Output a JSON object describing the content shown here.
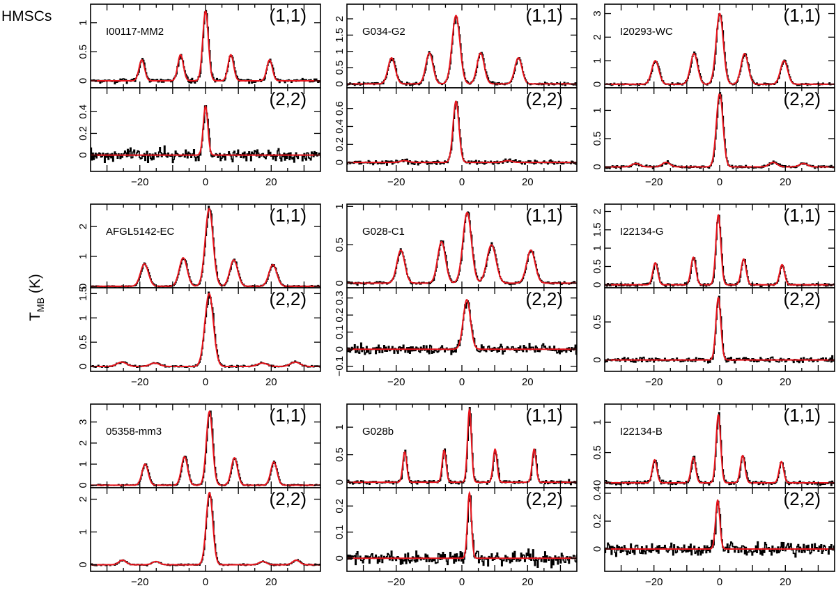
{
  "figure": {
    "row_label": "HMSCs",
    "ylabel_main": "T",
    "ylabel_sub": "MB",
    "ylabel_unit": " (K)"
  },
  "colors": {
    "data": "#000000",
    "model": "#e8141c",
    "frame": "#000000"
  },
  "chart_data": {
    "type": "line",
    "xlabel": "",
    "ylabel": "T_MB (K)",
    "xlim": [
      -35,
      35
    ],
    "x_ticks": [
      -20,
      0,
      20
    ],
    "x_tick_labels": [
      "−20",
      "0",
      "20"
    ],
    "line_types": [
      "(1,1)",
      "(2,2)"
    ],
    "sources": [
      {
        "name": "I00117-MM2",
        "panels": [
          {
            "line": "(1,1)",
            "ylim": [
              -0.12,
              1.32
            ],
            "y_ticks": [
              {
                "v": 0,
                "label": "0"
              },
              {
                "v": 0.5,
                "label": "0.5"
              },
              {
                "v": 1,
                "label": "1"
              }
            ],
            "components": [
              {
                "v": -19.4,
                "amp": 0.36,
                "w": 0.85
              },
              {
                "v": -7.6,
                "amp": 0.45,
                "w": 0.85
              },
              {
                "v": 0.0,
                "amp": 1.2,
                "w": 0.85
              },
              {
                "v": 7.7,
                "amp": 0.45,
                "w": 0.85
              },
              {
                "v": 19.5,
                "amp": 0.36,
                "w": 0.85
              }
            ],
            "noise": 0.035
          },
          {
            "line": "(2,2)",
            "ylim": [
              -0.15,
              0.62
            ],
            "y_ticks": [
              {
                "v": 0,
                "label": "0"
              },
              {
                "v": 0.2,
                "label": "0.2"
              },
              {
                "v": 0.4,
                "label": "0.4"
              }
            ],
            "components": [
              {
                "v": 0.0,
                "amp": 0.45,
                "w": 0.7
              }
            ],
            "noise": 0.06
          }
        ]
      },
      {
        "name": "G034-G2",
        "panels": [
          {
            "line": "(1,1)",
            "ylim": [
              -0.12,
              2.45
            ],
            "y_ticks": [
              {
                "v": 0,
                "label": "0"
              },
              {
                "v": 0.5,
                "label": "0.5"
              },
              {
                "v": 1,
                "label": "1"
              },
              {
                "v": 1.5,
                "label": "1.5"
              },
              {
                "v": 2,
                "label": "2"
              }
            ],
            "components": [
              {
                "v": -21.4,
                "amp": 0.8,
                "w": 1.1
              },
              {
                "v": -9.9,
                "amp": 0.95,
                "w": 1.1
              },
              {
                "v": -1.8,
                "amp": 2.1,
                "w": 1.2
              },
              {
                "v": 5.7,
                "amp": 0.95,
                "w": 1.1
              },
              {
                "v": 17.2,
                "amp": 0.8,
                "w": 1.1
              }
            ],
            "noise": 0.05
          },
          {
            "line": "(2,2)",
            "ylim": [
              -0.1,
              0.83
            ],
            "y_ticks": [
              {
                "v": 0,
                "label": "0"
              },
              {
                "v": 0.2,
                "label": "0.2"
              },
              {
                "v": 0.4,
                "label": "0.4"
              },
              {
                "v": 0.6,
                "label": "0.6"
              }
            ],
            "components": [
              {
                "v": -1.8,
                "amp": 0.68,
                "w": 0.9
              },
              {
                "v": -17.5,
                "amp": 0.02,
                "w": 1.2
              },
              {
                "v": 14.0,
                "amp": 0.02,
                "w": 1.2
              }
            ],
            "noise": 0.025
          }
        ]
      },
      {
        "name": "I20293-WC",
        "panels": [
          {
            "line": "(1,1)",
            "ylim": [
              -0.15,
              3.4
            ],
            "y_ticks": [
              {
                "v": 0,
                "label": "0"
              },
              {
                "v": 1,
                "label": "1"
              },
              {
                "v": 2,
                "label": "2"
              },
              {
                "v": 3,
                "label": "3"
              }
            ],
            "components": [
              {
                "v": -19.6,
                "amp": 1.0,
                "w": 1.1
              },
              {
                "v": -7.8,
                "amp": 1.3,
                "w": 1.1
              },
              {
                "v": 0.0,
                "amp": 3.0,
                "w": 1.1
              },
              {
                "v": 7.6,
                "amp": 1.3,
                "w": 1.1
              },
              {
                "v": 19.6,
                "amp": 1.0,
                "w": 1.1
              }
            ],
            "noise": 0.05
          },
          {
            "line": "(2,2)",
            "ylim": [
              -0.08,
              1.4
            ],
            "y_ticks": [
              {
                "v": 0,
                "label": "0"
              },
              {
                "v": 0.5,
                "label": "0.5"
              },
              {
                "v": 1,
                "label": "1"
              }
            ],
            "components": [
              {
                "v": 0.0,
                "amp": 1.3,
                "w": 1.0
              },
              {
                "v": -25.5,
                "amp": 0.06,
                "w": 1.2
              },
              {
                "v": -16.3,
                "amp": 0.08,
                "w": 1.2
              },
              {
                "v": 16.3,
                "amp": 0.08,
                "w": 1.2
              },
              {
                "v": 25.5,
                "amp": 0.06,
                "w": 1.2
              }
            ],
            "noise": 0.025
          }
        ]
      },
      {
        "name": "AFGL5142-EC",
        "panels": [
          {
            "line": "(1,1)",
            "ylim": [
              -0.05,
              2.75
            ],
            "y_ticks": [
              {
                "v": 0,
                "label": "0"
              },
              {
                "v": 1,
                "label": "1"
              },
              {
                "v": 2,
                "label": "2"
              }
            ],
            "components": [
              {
                "v": -18.6,
                "amp": 0.75,
                "w": 1.2
              },
              {
                "v": -6.8,
                "amp": 0.95,
                "w": 1.2
              },
              {
                "v": 1.1,
                "amp": 2.6,
                "w": 1.2
              },
              {
                "v": 8.6,
                "amp": 0.88,
                "w": 1.2
              },
              {
                "v": 20.5,
                "amp": 0.72,
                "w": 1.2
              }
            ],
            "noise": 0.025
          },
          {
            "line": "(2,2)",
            "ylim": [
              -0.1,
              1.62
            ],
            "y_ticks": [
              {
                "v": 0,
                "label": "0"
              },
              {
                "v": 0.5,
                "label": "0.5"
              },
              {
                "v": 1,
                "label": "1"
              },
              {
                "v": 1.5,
                "label": "1.5"
              }
            ],
            "components": [
              {
                "v": 1.1,
                "amp": 1.5,
                "w": 1.3
              },
              {
                "v": -25.5,
                "amp": 0.09,
                "w": 1.5
              },
              {
                "v": -15.5,
                "amp": 0.07,
                "w": 1.5
              },
              {
                "v": 17.3,
                "amp": 0.07,
                "w": 1.5
              },
              {
                "v": 27.3,
                "amp": 0.09,
                "w": 1.5
              }
            ],
            "noise": 0.02
          }
        ]
      },
      {
        "name": "G028-C1",
        "panels": [
          {
            "line": "(1,1)",
            "ylim": [
              -0.06,
              1.03
            ],
            "y_ticks": [
              {
                "v": 0,
                "label": "0"
              },
              {
                "v": 0.5,
                "label": "0.5"
              },
              {
                "v": 1,
                "label": "1"
              }
            ],
            "components": [
              {
                "v": -18.6,
                "amp": 0.43,
                "w": 1.2
              },
              {
                "v": -6.2,
                "amp": 0.54,
                "w": 1.2
              },
              {
                "v": 1.6,
                "amp": 0.92,
                "w": 1.3
              },
              {
                "v": 9.0,
                "amp": 0.5,
                "w": 1.4
              },
              {
                "v": 21.0,
                "amp": 0.43,
                "w": 1.3
              }
            ],
            "noise": 0.02
          },
          {
            "line": "(2,2)",
            "ylim": [
              -0.13,
              0.36
            ],
            "y_ticks": [
              {
                "v": -0.1,
                "label": "−0.1"
              },
              {
                "v": 0,
                "label": "0"
              },
              {
                "v": 0.1,
                "label": "0.1"
              },
              {
                "v": 0.2,
                "label": "0.2"
              },
              {
                "v": 0.3,
                "label": "0.3"
              }
            ],
            "components": [
              {
                "v": 1.5,
                "amp": 0.29,
                "w": 1.1
              }
            ],
            "noise": 0.028
          }
        ]
      },
      {
        "name": "I22134-G",
        "panels": [
          {
            "line": "(1,1)",
            "ylim": [
              -0.08,
              2.2
            ],
            "y_ticks": [
              {
                "v": 0,
                "label": "0"
              },
              {
                "v": 0.5,
                "label": "0.5"
              },
              {
                "v": 1,
                "label": "1"
              },
              {
                "v": 1.5,
                "label": "1.5"
              },
              {
                "v": 2,
                "label": "2"
              }
            ],
            "components": [
              {
                "v": -19.6,
                "amp": 0.6,
                "w": 0.75
              },
              {
                "v": -8.0,
                "amp": 0.75,
                "w": 0.75
              },
              {
                "v": -0.4,
                "amp": 1.9,
                "w": 0.75
              },
              {
                "v": 7.3,
                "amp": 0.7,
                "w": 0.75
              },
              {
                "v": 19.0,
                "amp": 0.55,
                "w": 0.75
              }
            ],
            "noise": 0.04
          },
          {
            "line": "(2,2)",
            "ylim": [
              -0.15,
              0.95
            ],
            "y_ticks": [
              {
                "v": 0,
                "label": "0"
              },
              {
                "v": 0.5,
                "label": "0.5"
              }
            ],
            "components": [
              {
                "v": -0.4,
                "amp": 0.82,
                "w": 0.75
              }
            ],
            "noise": 0.035
          }
        ]
      },
      {
        "name": "05358-mm3",
        "panels": [
          {
            "line": "(1,1)",
            "ylim": [
              -0.12,
              3.85
            ],
            "y_ticks": [
              {
                "v": 0,
                "label": "0"
              },
              {
                "v": 1,
                "label": "1"
              },
              {
                "v": 2,
                "label": "2"
              },
              {
                "v": 3,
                "label": "3"
              }
            ],
            "components": [
              {
                "v": -18.4,
                "amp": 1.0,
                "w": 0.95
              },
              {
                "v": -6.4,
                "amp": 1.35,
                "w": 0.95
              },
              {
                "v": 1.2,
                "amp": 3.5,
                "w": 0.95
              },
              {
                "v": 8.8,
                "amp": 1.3,
                "w": 0.95
              },
              {
                "v": 20.8,
                "amp": 1.1,
                "w": 0.95
              }
            ],
            "noise": 0.04
          },
          {
            "line": "(2,2)",
            "ylim": [
              -0.2,
              2.35
            ],
            "y_ticks": [
              {
                "v": 0,
                "label": "0"
              },
              {
                "v": 1,
                "label": "1"
              },
              {
                "v": 2,
                "label": "2"
              }
            ],
            "components": [
              {
                "v": 1.2,
                "amp": 2.2,
                "w": 1.0
              },
              {
                "v": -25.3,
                "amp": 0.14,
                "w": 1.1
              },
              {
                "v": -15.1,
                "amp": 0.1,
                "w": 1.1
              },
              {
                "v": 17.4,
                "amp": 0.1,
                "w": 1.1
              },
              {
                "v": 27.6,
                "amp": 0.14,
                "w": 1.1
              }
            ],
            "noise": 0.025
          }
        ]
      },
      {
        "name": "G028b",
        "panels": [
          {
            "line": "(1,1)",
            "ylim": [
              -0.1,
              1.42
            ],
            "y_ticks": [
              {
                "v": 0,
                "label": "0"
              },
              {
                "v": 0.5,
                "label": "0.5"
              },
              {
                "v": 1,
                "label": "1"
              }
            ],
            "components": [
              {
                "v": -17.4,
                "amp": 0.55,
                "w": 0.6
              },
              {
                "v": -5.4,
                "amp": 0.58,
                "w": 0.6
              },
              {
                "v": 2.3,
                "amp": 1.32,
                "w": 0.6
              },
              {
                "v": 10.1,
                "amp": 0.6,
                "w": 0.6
              },
              {
                "v": 22.0,
                "amp": 0.6,
                "w": 0.6
              }
            ],
            "noise": 0.035
          },
          {
            "line": "(2,2)",
            "ylim": [
              -0.05,
              0.27
            ],
            "y_ticks": [
              {
                "v": 0,
                "label": "0"
              },
              {
                "v": 0.1,
                "label": "0.1"
              },
              {
                "v": 0.2,
                "label": "0.2"
              }
            ],
            "components": [
              {
                "v": 2.3,
                "amp": 0.25,
                "w": 0.6
              }
            ],
            "noise": 0.025
          }
        ]
      },
      {
        "name": "I22134-B",
        "panels": [
          {
            "line": "(1,1)",
            "ylim": [
              -0.08,
              1.3
            ],
            "y_ticks": [
              {
                "v": 0,
                "label": "0"
              },
              {
                "v": 0.5,
                "label": "0.5"
              },
              {
                "v": 1,
                "label": "1"
              }
            ],
            "components": [
              {
                "v": -19.8,
                "amp": 0.38,
                "w": 0.7
              },
              {
                "v": -8.0,
                "amp": 0.42,
                "w": 0.7
              },
              {
                "v": -0.4,
                "amp": 1.12,
                "w": 0.7
              },
              {
                "v": 7.0,
                "amp": 0.45,
                "w": 0.7
              },
              {
                "v": 18.8,
                "amp": 0.35,
                "w": 0.7
              }
            ],
            "noise": 0.035
          },
          {
            "line": "(2,2)",
            "ylim": [
              -0.16,
              0.44
            ],
            "y_ticks": [
              {
                "v": 0,
                "label": "0"
              },
              {
                "v": 0.2,
                "label": "0.2"
              },
              {
                "v": 0.4,
                "label": "0.4"
              }
            ],
            "components": [
              {
                "v": -0.6,
                "amp": 0.35,
                "w": 0.65
              }
            ],
            "noise": 0.05
          }
        ]
      }
    ]
  }
}
